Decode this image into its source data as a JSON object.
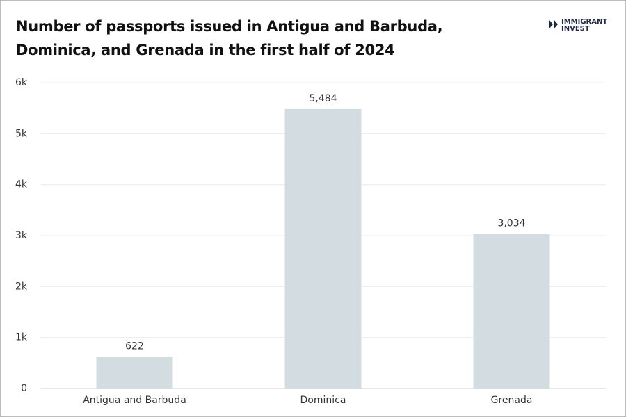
{
  "chart_data": {
    "type": "bar",
    "title": "Number of passports issued in Antigua and Barbuda, Dominica, and Grenada in the first half of 2024",
    "categories": [
      "Antigua and Barbuda",
      "Dominica",
      "Grenada"
    ],
    "values": [
      622,
      5484,
      3034
    ],
    "value_labels": [
      "622",
      "5,484",
      "3,034"
    ],
    "color": "#d3dde1",
    "ylim": [
      0,
      6000
    ],
    "yticks": [
      0,
      {
        "value": 1000,
        "label": "1k"
      },
      {
        "value": 2000,
        "label": "2k"
      },
      {
        "value": 3000,
        "label": "3k"
      },
      {
        "value": 4000,
        "label": "4k"
      },
      {
        "value": 5000,
        "label": "5k"
      },
      {
        "value": 6000,
        "label": "6k"
      }
    ],
    "grid": true
  },
  "logo": {
    "lines": [
      "IMMIGRANT",
      "INVEST"
    ]
  }
}
